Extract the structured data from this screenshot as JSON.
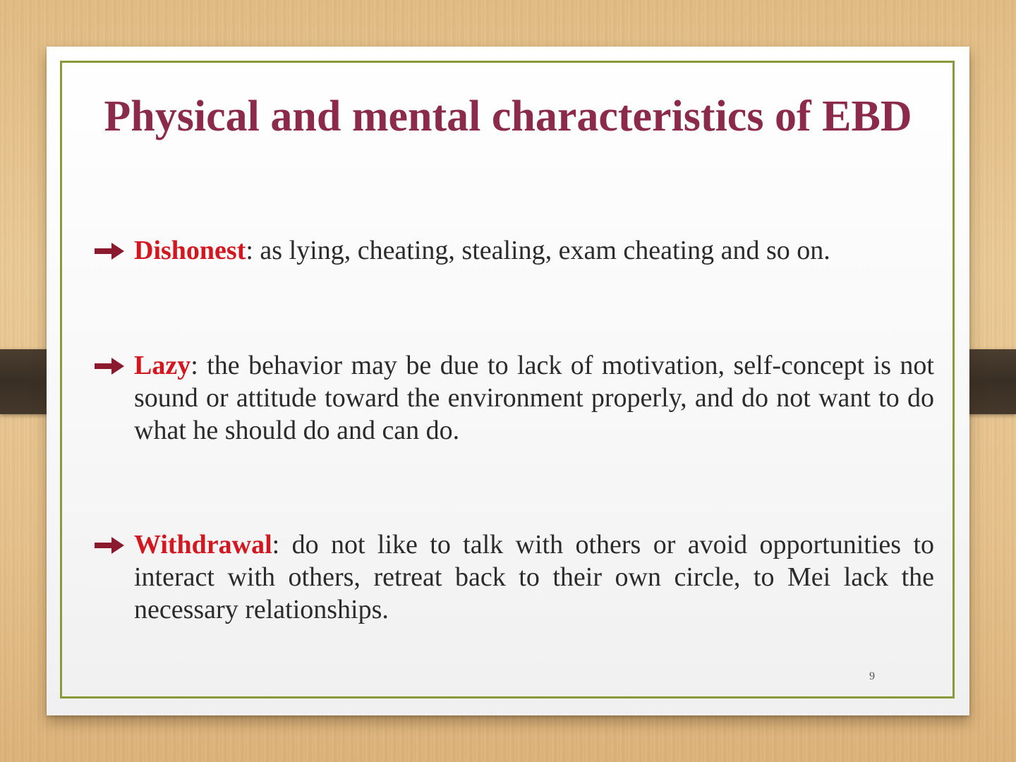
{
  "slide": {
    "title": "Physical and mental characteristics of EBD",
    "page_number": "9",
    "bullets": [
      {
        "term": "Dishonest",
        "text": ": as lying, cheating, stealing, exam cheating and so on."
      },
      {
        "term": "Lazy",
        "text": ": the behavior may be due to lack of motivation, self-concept is not sound or attitude toward the environment properly, and do not want to do what he should do and can do."
      },
      {
        "term": "Withdrawal",
        "text": ": do not like to talk with others or avoid opportunities to interact with others, retreat back to their own circle, to Mei lack the necessary relationships."
      }
    ]
  },
  "colors": {
    "title": "#8b2a4a",
    "term": "#d4161f",
    "frame": "#8a9a3a",
    "arrow": "#8b1a2e"
  },
  "icons": {
    "bullet": "right-arrow-icon"
  }
}
